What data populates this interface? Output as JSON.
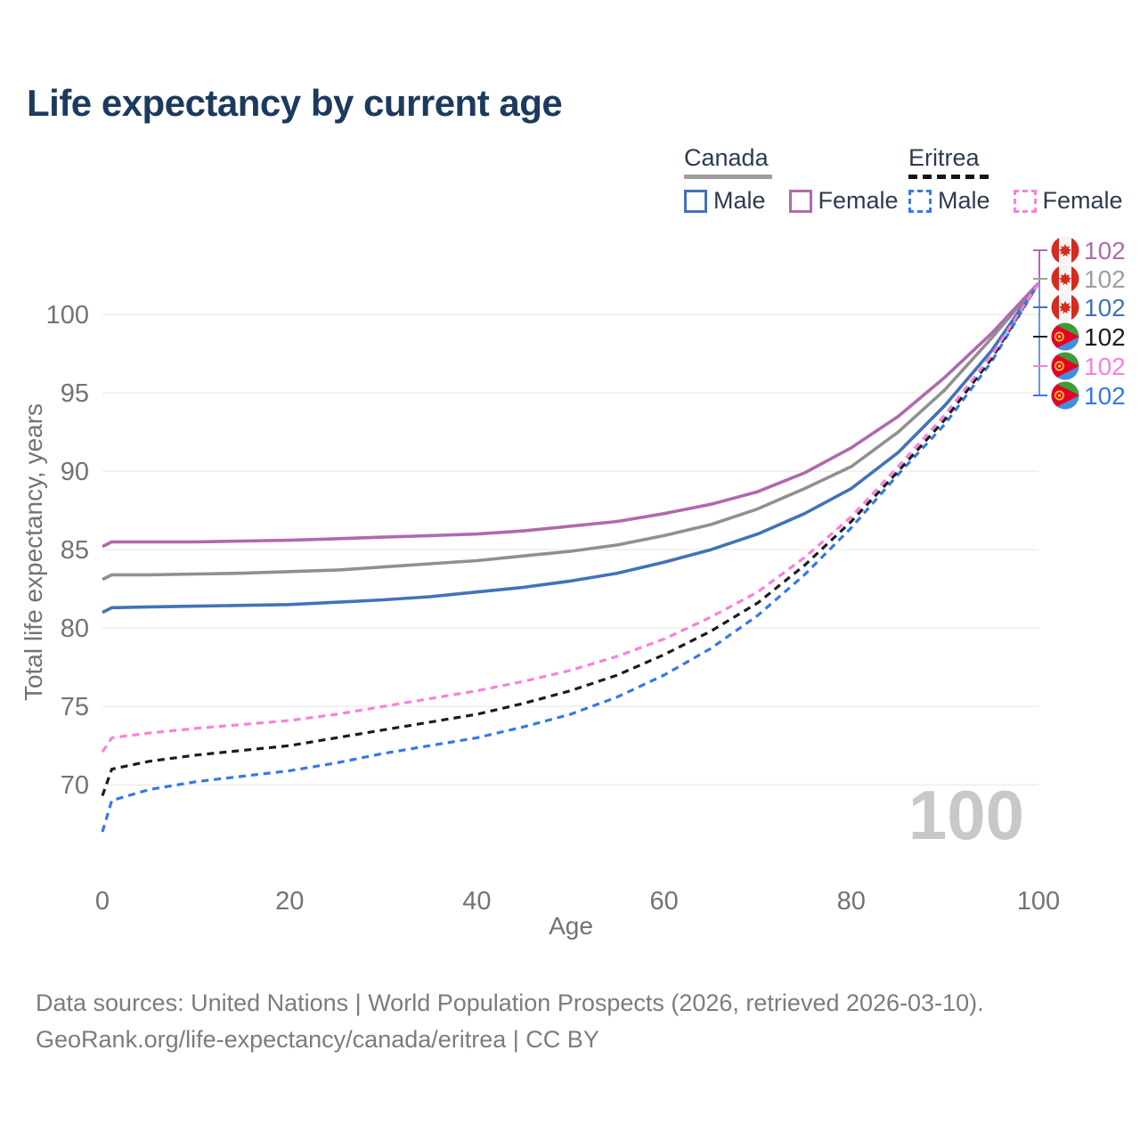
{
  "title": "Life expectancy by current age",
  "legend": {
    "groups": [
      {
        "label": "Canada",
        "line_style": "solid",
        "line_color": "#9e9e9e",
        "items": [
          {
            "label": "Male",
            "color": "#4272b8",
            "style": "solid"
          },
          {
            "label": "Female",
            "color": "#b069ad",
            "style": "solid"
          }
        ]
      },
      {
        "label": "Eritrea",
        "line_style": "dashed",
        "line_color": "#151515",
        "items": [
          {
            "label": "Male",
            "color": "#3579e8",
            "style": "dashed"
          },
          {
            "label": "Female",
            "color": "#fb7fdf",
            "style": "dashed"
          }
        ]
      }
    ]
  },
  "end_labels": [
    {
      "flag": "canada",
      "value": "102",
      "color": "#b069ad"
    },
    {
      "flag": "canada",
      "value": "102",
      "color": "#9e9e9e"
    },
    {
      "flag": "canada",
      "value": "102",
      "color": "#4272b8"
    },
    {
      "flag": "eritrea",
      "value": "102",
      "color": "#1c1c1c"
    },
    {
      "flag": "eritrea",
      "value": "102",
      "color": "#fb7fdf"
    },
    {
      "flag": "eritrea",
      "value": "102",
      "color": "#3579e8"
    }
  ],
  "watermark": "100",
  "footer": {
    "line1": "Data sources: United Nations | World Population Prospects (2026, retrieved 2026-03-10).",
    "line2": "GeoRank.org/life-expectancy/canada/eritrea | CC BY"
  },
  "chart_data": {
    "type": "line",
    "title": "Life expectancy by current age",
    "xlabel": "Age",
    "ylabel": "Total life expectancy, years",
    "xlim": [
      0,
      100
    ],
    "ylim": [
      66,
      103
    ],
    "x_ticks": [
      0,
      20,
      40,
      60,
      80,
      100
    ],
    "y_ticks": [
      70,
      75,
      80,
      85,
      90,
      95,
      100
    ],
    "grid": true,
    "legend_position": "top-right",
    "x": [
      0,
      1,
      5,
      10,
      15,
      20,
      25,
      30,
      35,
      40,
      45,
      50,
      55,
      60,
      65,
      70,
      75,
      80,
      85,
      90,
      95,
      100
    ],
    "series": [
      {
        "name": "Canada Male",
        "color": "#4272b8",
        "dash": false,
        "values": [
          81.0,
          81.3,
          81.35,
          81.4,
          81.45,
          81.5,
          81.65,
          81.8,
          82.0,
          82.3,
          82.6,
          83.0,
          83.5,
          84.2,
          85.0,
          86.0,
          87.3,
          88.9,
          91.2,
          94.2,
          97.7,
          102
        ]
      },
      {
        "name": "Canada Both sexes",
        "color": "#909090",
        "dash": false,
        "values": [
          83.1,
          83.4,
          83.4,
          83.45,
          83.5,
          83.6,
          83.7,
          83.9,
          84.1,
          84.3,
          84.6,
          84.9,
          85.3,
          85.9,
          86.6,
          87.6,
          88.9,
          90.3,
          92.5,
          95.2,
          98.5,
          102
        ]
      },
      {
        "name": "Canada Female",
        "color": "#b069ad",
        "dash": false,
        "values": [
          85.2,
          85.5,
          85.5,
          85.5,
          85.55,
          85.6,
          85.7,
          85.8,
          85.9,
          86.0,
          86.2,
          86.5,
          86.8,
          87.3,
          87.9,
          88.7,
          89.9,
          91.5,
          93.5,
          96.0,
          98.8,
          102
        ]
      },
      {
        "name": "Eritrea Male",
        "color": "#3579e8",
        "dash": true,
        "values": [
          67.0,
          69.0,
          69.7,
          70.2,
          70.55,
          70.9,
          71.4,
          72.0,
          72.5,
          73.0,
          73.7,
          74.5,
          75.6,
          77.0,
          78.7,
          80.8,
          83.4,
          86.4,
          89.8,
          93.0,
          97.0,
          102
        ]
      },
      {
        "name": "Eritrea Both sexes",
        "color": "#1c1c1c",
        "dash": true,
        "values": [
          69.3,
          71.0,
          71.5,
          71.9,
          72.2,
          72.5,
          73.0,
          73.5,
          74.0,
          74.5,
          75.2,
          76.0,
          77.0,
          78.3,
          79.8,
          81.6,
          84.0,
          86.8,
          90.0,
          93.3,
          97.2,
          102
        ]
      },
      {
        "name": "Eritrea Female",
        "color": "#fb7fdf",
        "dash": true,
        "values": [
          72.1,
          73.0,
          73.3,
          73.6,
          73.85,
          74.1,
          74.5,
          75.0,
          75.5,
          76.0,
          76.6,
          77.3,
          78.2,
          79.3,
          80.7,
          82.3,
          84.5,
          87.1,
          90.3,
          93.6,
          97.4,
          102
        ]
      }
    ],
    "end_age": 100,
    "end_value": 102
  }
}
